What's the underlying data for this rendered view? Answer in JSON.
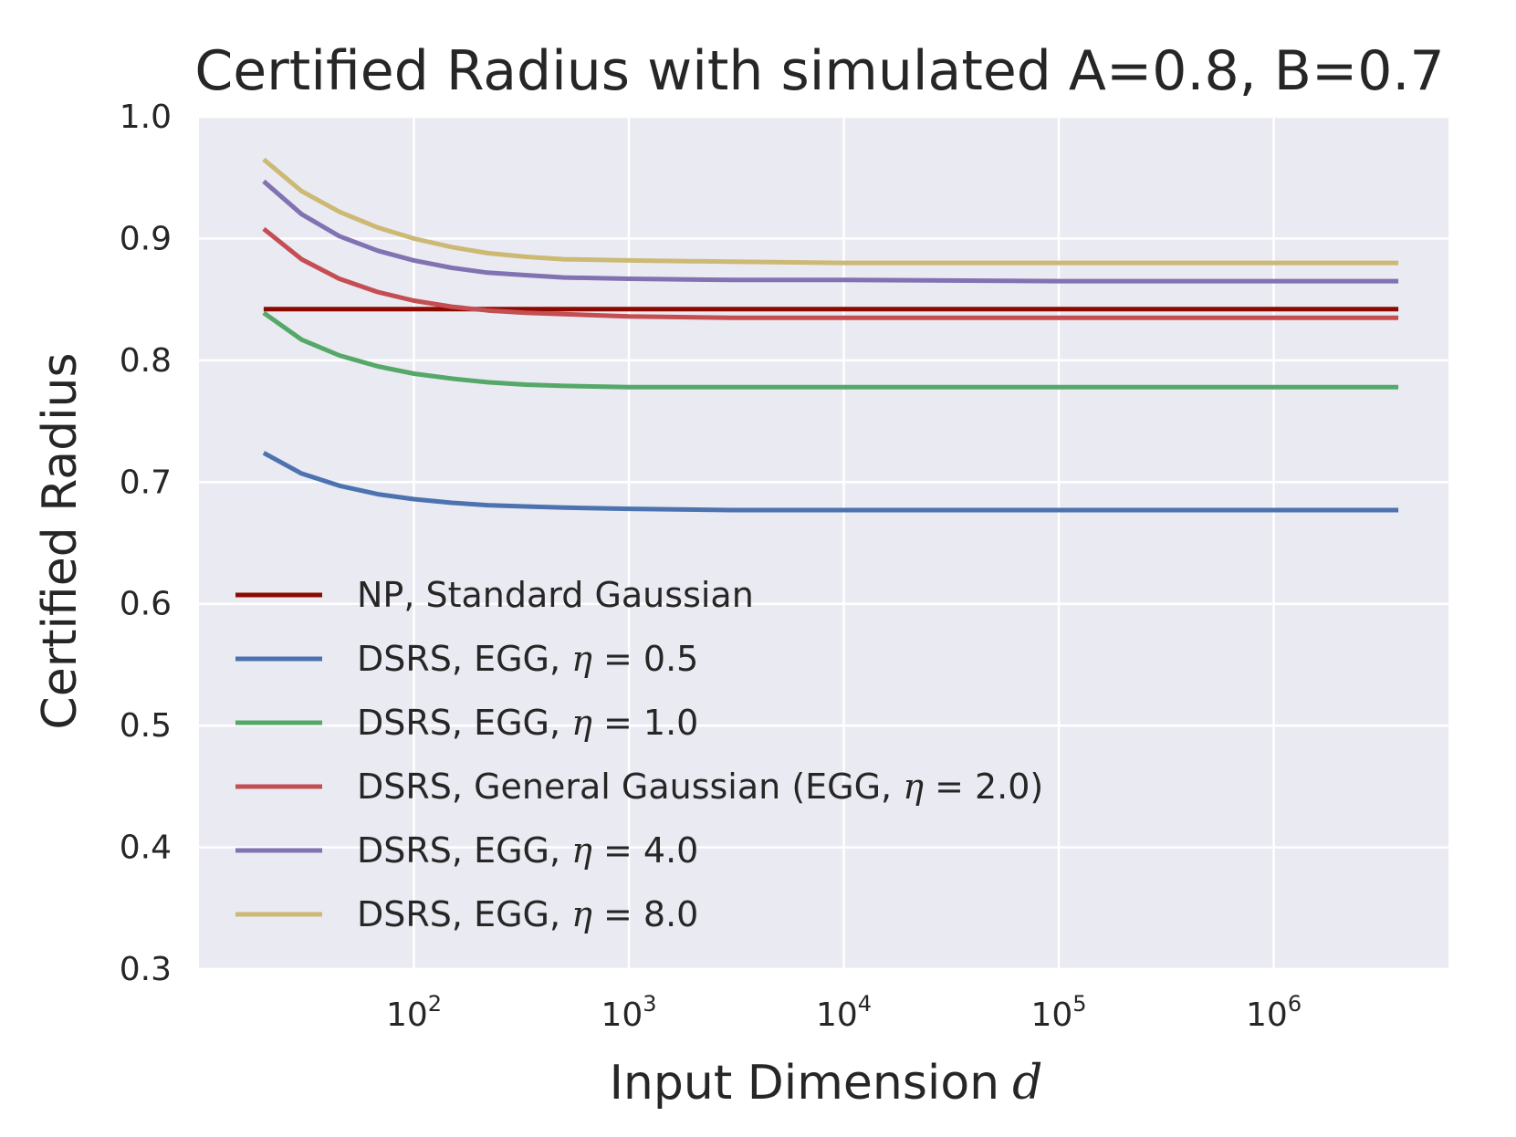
{
  "chart_data": {
    "type": "line",
    "title": "Certified Radius with simulated A=0.8, B=0.7",
    "xlabel": "Input Dimension",
    "xlabel_var": "d",
    "ylabel": "Certified Radius",
    "xscale": "log",
    "xlim": [
      10,
      6500000
    ],
    "ylim": [
      0.3,
      1.0
    ],
    "grid": true,
    "legend_position": "lower-left",
    "yticks": [
      {
        "value": 0.3,
        "label": "0.3"
      },
      {
        "value": 0.4,
        "label": "0.4"
      },
      {
        "value": 0.5,
        "label": "0.5"
      },
      {
        "value": 0.6,
        "label": "0.6"
      },
      {
        "value": 0.7,
        "label": "0.7"
      },
      {
        "value": 0.8,
        "label": "0.8"
      },
      {
        "value": 0.9,
        "label": "0.9"
      },
      {
        "value": 1.0,
        "label": "1.0"
      }
    ],
    "xticks": [
      {
        "value": 100,
        "base": "10",
        "exp": "2"
      },
      {
        "value": 1000,
        "base": "10",
        "exp": "3"
      },
      {
        "value": 10000,
        "base": "10",
        "exp": "4"
      },
      {
        "value": 100000,
        "base": "10",
        "exp": "5"
      },
      {
        "value": 1000000,
        "base": "10",
        "exp": "6"
      }
    ],
    "x": [
      20,
      30,
      45,
      68,
      100,
      150,
      220,
      330,
      500,
      1000,
      3000,
      10000,
      100000,
      1000000,
      3800000
    ],
    "series": [
      {
        "name": "NP, Standard Gaussian",
        "legend_prefix": "NP, Standard Gaussian",
        "legend_eta": "",
        "legend_suffix": "",
        "color": "#8c0900",
        "values": [
          0.842,
          0.842,
          0.842,
          0.842,
          0.842,
          0.842,
          0.842,
          0.842,
          0.842,
          0.842,
          0.842,
          0.842,
          0.842,
          0.842,
          0.842
        ]
      },
      {
        "name": "DSRS, EGG, η = 0.5",
        "legend_prefix": "DSRS, EGG, ",
        "legend_eta": "η",
        "legend_suffix": " = 0.5",
        "color": "#4c72b0",
        "values": [
          0.724,
          0.707,
          0.697,
          0.69,
          0.686,
          0.683,
          0.681,
          0.68,
          0.679,
          0.678,
          0.677,
          0.677,
          0.677,
          0.677,
          0.677
        ]
      },
      {
        "name": "DSRS, EGG, η = 1.0",
        "legend_prefix": "DSRS, EGG, ",
        "legend_eta": "η",
        "legend_suffix": " = 1.0",
        "color": "#55a868",
        "values": [
          0.839,
          0.817,
          0.804,
          0.795,
          0.789,
          0.785,
          0.782,
          0.78,
          0.779,
          0.778,
          0.778,
          0.778,
          0.778,
          0.778,
          0.778
        ]
      },
      {
        "name": "DSRS, General Gaussian (EGG, η = 2.0)",
        "legend_prefix": "DSRS, General Gaussian (EGG, ",
        "legend_eta": "η",
        "legend_suffix": " = 2.0)",
        "color": "#c44e52",
        "values": [
          0.908,
          0.883,
          0.867,
          0.856,
          0.849,
          0.844,
          0.841,
          0.839,
          0.838,
          0.836,
          0.835,
          0.835,
          0.835,
          0.835,
          0.835
        ]
      },
      {
        "name": "DSRS, EGG, η = 4.0",
        "legend_prefix": "DSRS, EGG, ",
        "legend_eta": "η",
        "legend_suffix": " = 4.0",
        "color": "#8172b2",
        "values": [
          0.947,
          0.92,
          0.902,
          0.89,
          0.882,
          0.876,
          0.872,
          0.87,
          0.868,
          0.867,
          0.866,
          0.866,
          0.865,
          0.865,
          0.865
        ]
      },
      {
        "name": "DSRS, EGG, η = 8.0",
        "legend_prefix": "DSRS, EGG, ",
        "legend_eta": "η",
        "legend_suffix": " = 8.0",
        "color": "#ccb974",
        "values": [
          0.965,
          0.939,
          0.922,
          0.909,
          0.9,
          0.893,
          0.888,
          0.885,
          0.883,
          0.882,
          0.881,
          0.88,
          0.88,
          0.88,
          0.88
        ]
      }
    ]
  }
}
